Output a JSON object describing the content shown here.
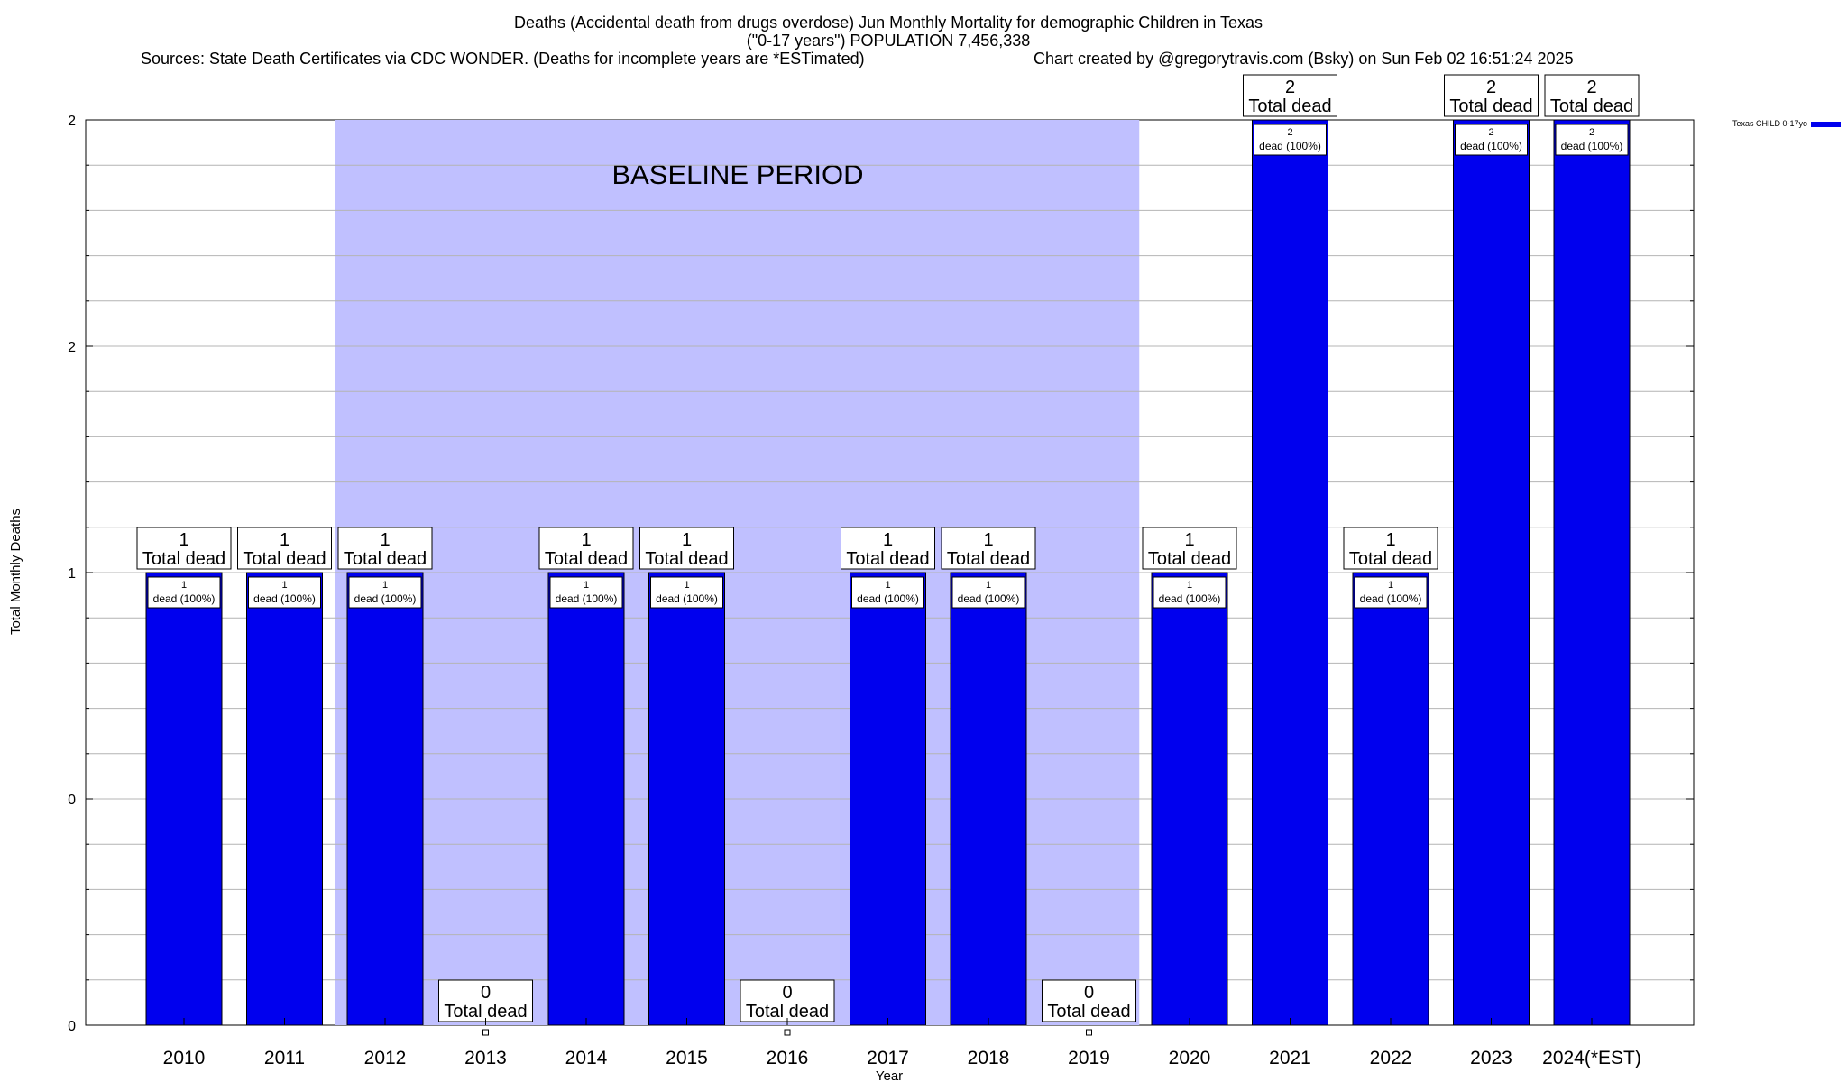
{
  "chart_data": {
    "type": "bar",
    "title_lines": [
      "Deaths (Accidental death from drugs overdose) Jun Monthly Mortality for demographic Children in Texas",
      "(\"0-17 years\") POPULATION 7,456,338"
    ],
    "sources_text": "Sources: State Death Certificates via CDC WONDER. (Deaths for incomplete years are *ESTimated)",
    "credit_text": "Chart created by @gregorytravis.com (Bsky) on Sun Feb 02 16:51:24 2025",
    "xlabel": "Year",
    "ylabel": "Total Monthly Deaths",
    "ylim": [
      0,
      2
    ],
    "y_tick_labels": [
      "0",
      "0",
      "1",
      "2",
      "2"
    ],
    "grid": true,
    "legend": {
      "label": "Texas CHILD 0-17yo",
      "color": "#0000ee",
      "placement": "top-right"
    },
    "baseline": {
      "label": "BASELINE PERIOD",
      "from": "2012",
      "to": "2019",
      "color": "#c0c0ff"
    },
    "categories": [
      "2010",
      "2011",
      "2012",
      "2013",
      "2014",
      "2015",
      "2016",
      "2017",
      "2018",
      "2019",
      "2020",
      "2021",
      "2022",
      "2023",
      "2024(*EST)"
    ],
    "series": [
      {
        "name": "Texas CHILD 0-17yo",
        "color": "#0000ee",
        "values": [
          1,
          1,
          1,
          0,
          1,
          1,
          0,
          1,
          1,
          0,
          1,
          2,
          1,
          2,
          2
        ]
      }
    ],
    "total_label_suffix": "Total dead",
    "inner_label_suffix": "dead (100%)"
  }
}
